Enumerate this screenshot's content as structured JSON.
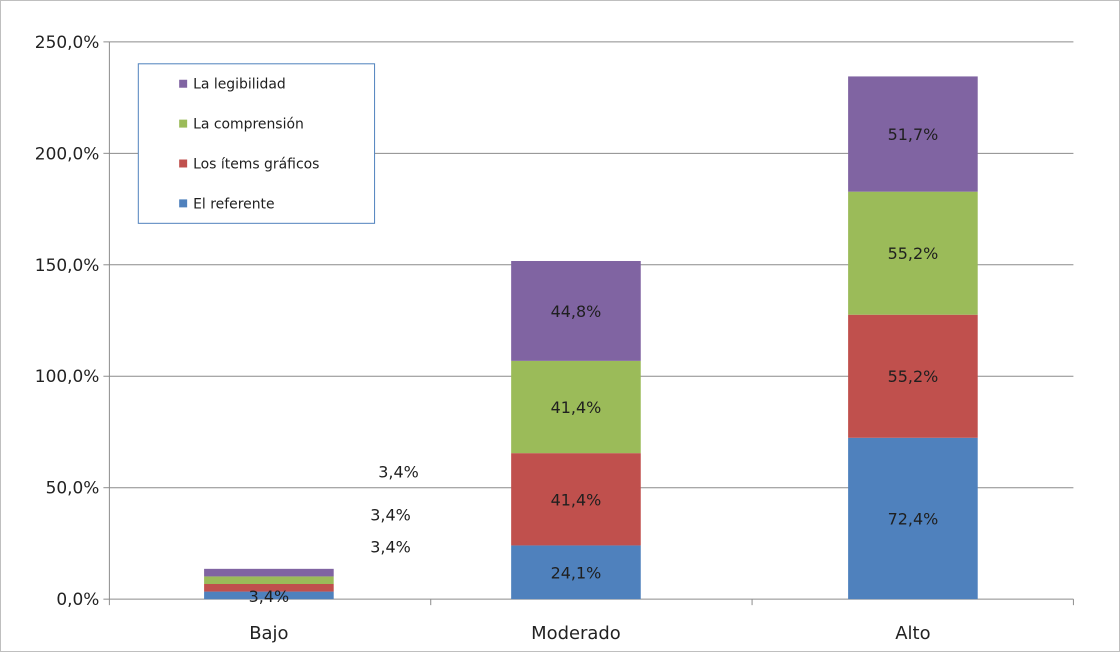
{
  "chart_data": {
    "type": "bar",
    "stacked": true,
    "categories": [
      "Bajo",
      "Moderado",
      "Alto"
    ],
    "series": [
      {
        "name": "El referente",
        "values": [
          3.4,
          24.1,
          72.4
        ],
        "labels": [
          "3,4%",
          "24,1%",
          "72,4%"
        ],
        "color": "#4f81bd"
      },
      {
        "name": "Los ítems gráficos",
        "values": [
          3.4,
          41.4,
          55.2
        ],
        "labels": [
          "3,4%",
          "41,4%",
          "55,2%"
        ],
        "color": "#c0504d"
      },
      {
        "name": "La comprensión",
        "values": [
          3.4,
          41.4,
          55.2
        ],
        "labels": [
          "3,4%",
          "41,4%",
          "55,2%"
        ],
        "color": "#9bbb59"
      },
      {
        "name": "La legibilidad",
        "values": [
          3.4,
          44.8,
          51.7
        ],
        "labels": [
          "3,4%",
          "44,8%",
          "51,7%"
        ],
        "color": "#8064a2"
      }
    ],
    "yticks": [
      "0,0%",
      "50,0%",
      "100,0%",
      "150,0%",
      "200,0%",
      "250,0%"
    ],
    "ylim": [
      0,
      250
    ],
    "grid": true,
    "legend_position": "top-left",
    "legend_order": [
      "La legibilidad",
      "La comprensión",
      "Los ítems gráficos",
      "El referente"
    ]
  }
}
